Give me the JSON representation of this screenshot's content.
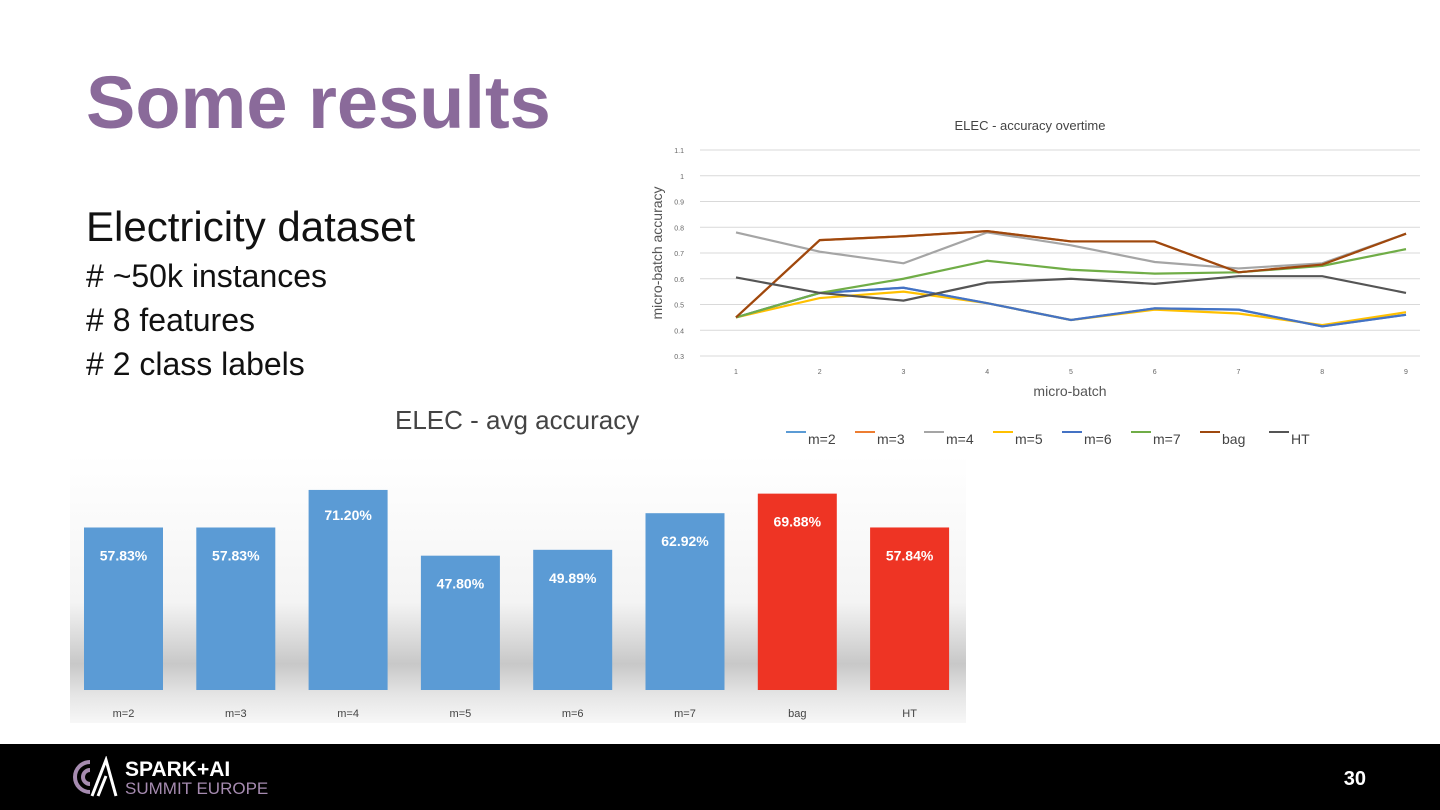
{
  "slide": {
    "title": "Some results",
    "subtitle": "Electricity dataset",
    "bullets": [
      "# ~50k instances",
      "# 8 features",
      "# 2 class labels"
    ],
    "page_number": "30",
    "logo_line1": "SPARK+AI",
    "logo_line2": "SUMMIT EUROPE"
  },
  "chart_data": [
    {
      "type": "line",
      "title": "ELEC - accuracy overtime",
      "xlabel": "micro-batch",
      "ylabel": "micro-batch accuracy",
      "ylim": [
        0.3,
        1.1
      ],
      "yticks": [
        "0.3",
        "0.4",
        "0.5",
        "0.6",
        "0.7",
        "0.8",
        "0.9",
        "1",
        "1.1"
      ],
      "x": [
        1,
        2,
        3,
        4,
        5,
        6,
        7,
        8,
        9
      ],
      "grid": true,
      "legend": "bottom",
      "series": [
        {
          "name": "m=2",
          "color": "#5b9bd5",
          "values": [
            0.45,
            0.545,
            0.565,
            0.505,
            0.44,
            0.485,
            0.48,
            0.415,
            0.46
          ]
        },
        {
          "name": "m=3",
          "color": "#ed7d31",
          "values": [
            0.45,
            0.75,
            0.765,
            0.785,
            0.745,
            0.745,
            0.625,
            0.655,
            0.775
          ]
        },
        {
          "name": "m=4",
          "color": "#a5a5a5",
          "values": [
            0.78,
            0.705,
            0.66,
            0.78,
            0.73,
            0.665,
            0.64,
            0.66,
            0.775
          ]
        },
        {
          "name": "m=5",
          "color": "#ffc000",
          "values": [
            0.45,
            0.525,
            0.55,
            0.505,
            0.44,
            0.48,
            0.465,
            0.42,
            0.47
          ]
        },
        {
          "name": "m=6",
          "color": "#4472c4",
          "values": [
            0.45,
            0.545,
            0.565,
            0.505,
            0.44,
            0.485,
            0.48,
            0.415,
            0.46
          ]
        },
        {
          "name": "m=7",
          "color": "#70ad47",
          "values": [
            0.45,
            0.545,
            0.6,
            0.67,
            0.635,
            0.62,
            0.625,
            0.65,
            0.715
          ]
        },
        {
          "name": "bag",
          "color": "#9e480e",
          "values": [
            0.45,
            0.75,
            0.765,
            0.785,
            0.745,
            0.745,
            0.625,
            0.655,
            0.775
          ]
        },
        {
          "name": "HT",
          "color": "#555555",
          "values": [
            0.605,
            0.545,
            0.515,
            0.585,
            0.6,
            0.58,
            0.61,
            0.61,
            0.545
          ]
        }
      ]
    },
    {
      "type": "bar",
      "title": "ELEC - avg accuracy",
      "categories": [
        "m=2",
        "m=3",
        "m=4",
        "m=5",
        "m=6",
        "m=7",
        "bag",
        "HT"
      ],
      "values": [
        57.83,
        57.83,
        71.2,
        47.8,
        49.89,
        62.92,
        69.88,
        57.84
      ],
      "labels": [
        "57.83%",
        "57.83%",
        "71.20%",
        "47.80%",
        "49.89%",
        "62.92%",
        "69.88%",
        "57.84%"
      ],
      "colors": [
        "#5b9bd5",
        "#5b9bd5",
        "#5b9bd5",
        "#5b9bd5",
        "#5b9bd5",
        "#5b9bd5",
        "#ee3424",
        "#ee3424"
      ],
      "ylim": [
        0,
        80
      ]
    }
  ]
}
